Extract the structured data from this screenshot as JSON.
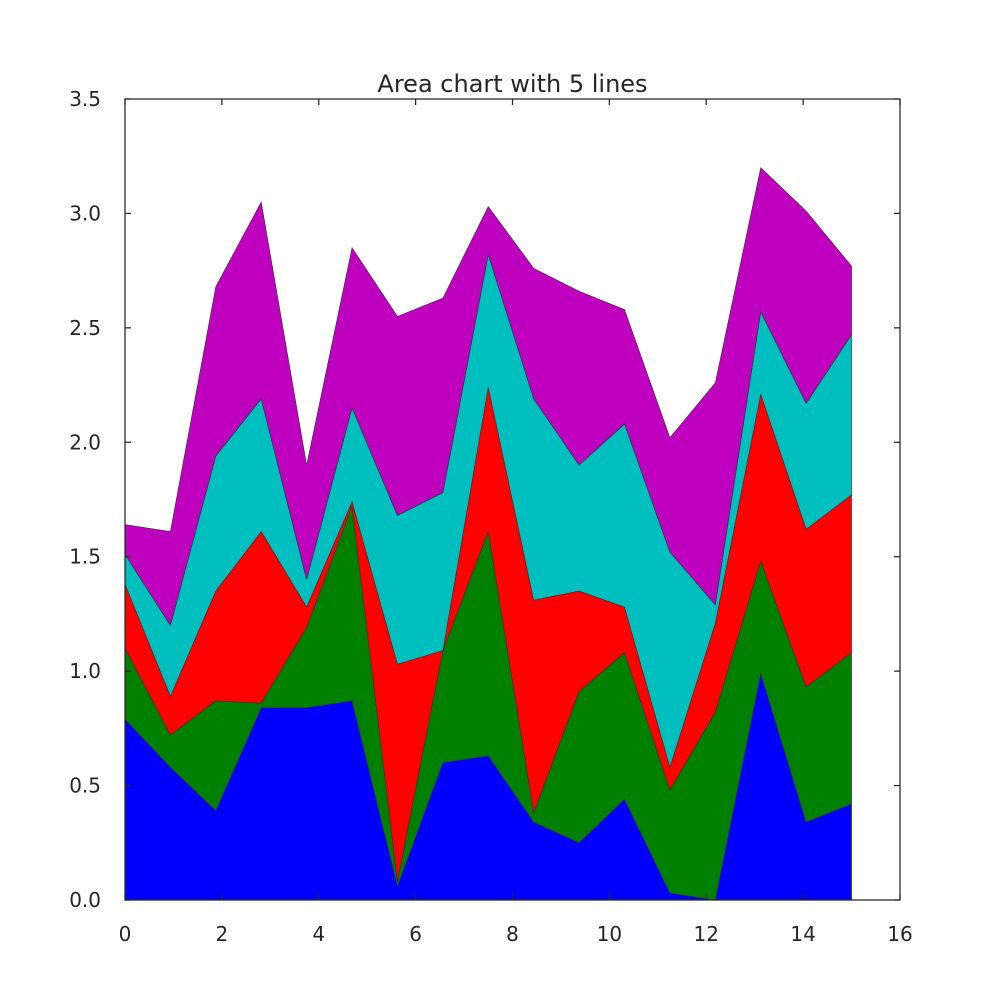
{
  "chart_data": {
    "type": "area",
    "stacked": true,
    "title": "Area chart with 5 lines",
    "xlabel": "",
    "ylabel": "",
    "xlim": [
      0,
      16
    ],
    "ylim": [
      0,
      3.5
    ],
    "xticks": [
      0,
      2,
      4,
      6,
      8,
      10,
      12,
      14,
      16
    ],
    "yticks": [
      0.0,
      0.5,
      1.0,
      1.5,
      2.0,
      2.5,
      3.0,
      3.5
    ],
    "xtick_labels": [
      "0",
      "2",
      "4",
      "6",
      "8",
      "10",
      "12",
      "14",
      "16"
    ],
    "ytick_labels": [
      "0.0",
      "0.5",
      "1.0",
      "1.5",
      "2.0",
      "2.5",
      "3.0",
      "3.5"
    ],
    "grid": false,
    "x": [
      0,
      0.9375,
      1.875,
      2.8125,
      3.75,
      4.6875,
      5.625,
      6.5625,
      7.5,
      8.4375,
      9.375,
      10.3125,
      11.25,
      12.1875,
      13.125,
      14.0625,
      15
    ],
    "series": [
      {
        "color": "#0000ff",
        "values": [
          0.79,
          0.58,
          0.39,
          0.84,
          0.84,
          0.87,
          0.06,
          0.6,
          0.63,
          0.34,
          0.25,
          0.44,
          0.03,
          0.0,
          0.99,
          0.34,
          0.42
        ]
      },
      {
        "color": "#008000",
        "values": [
          0.31,
          0.14,
          0.48,
          0.02,
          0.35,
          0.85,
          0.02,
          0.49,
          0.98,
          0.04,
          0.66,
          0.64,
          0.45,
          0.82,
          0.49,
          0.59,
          0.66
        ]
      },
      {
        "color": "#ff0000",
        "values": [
          0.28,
          0.17,
          0.48,
          0.75,
          0.09,
          0.02,
          0.95,
          0.0,
          0.63,
          0.93,
          0.44,
          0.2,
          0.1,
          0.39,
          0.73,
          0.69,
          0.69
        ]
      },
      {
        "color": "#00bfbf",
        "values": [
          0.13,
          0.31,
          0.59,
          0.58,
          0.12,
          0.41,
          0.65,
          0.69,
          0.58,
          0.88,
          0.55,
          0.8,
          0.94,
          0.08,
          0.36,
          0.55,
          0.7
        ]
      },
      {
        "color": "#bf00bf",
        "values": [
          0.13,
          0.41,
          0.74,
          0.86,
          0.5,
          0.7,
          0.87,
          0.85,
          0.21,
          0.57,
          0.76,
          0.5,
          0.5,
          0.97,
          0.63,
          0.84,
          0.3
        ]
      }
    ]
  }
}
